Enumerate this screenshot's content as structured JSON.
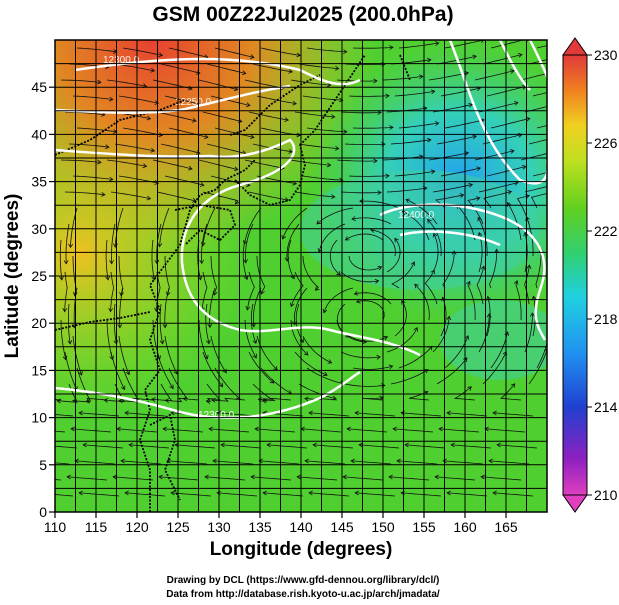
{
  "title": "GSM 00Z22Jul2025 (200.0hPa)",
  "x_axis": {
    "label": "Longitude (degrees)",
    "range": [
      110,
      170
    ],
    "ticks": [
      "110",
      "115",
      "120",
      "125",
      "130",
      "135",
      "140",
      "145",
      "150",
      "155",
      "160",
      "165"
    ]
  },
  "y_axis": {
    "label": "Latitude  (degrees)",
    "range": [
      0,
      50
    ],
    "ticks": [
      "0",
      "5",
      "10",
      "15",
      "20",
      "25",
      "30",
      "35",
      "40",
      "45"
    ]
  },
  "colorbar": {
    "ticks": [
      "230",
      "226",
      "222",
      "218",
      "214",
      "210"
    ],
    "colors": [
      "#e0306a",
      "#e040e0",
      "#8000c0",
      "#2030c0",
      "#2070e0",
      "#20b0f0",
      "#30d0c0",
      "#40d060",
      "#60d020",
      "#a0e020",
      "#e8e020",
      "#f8a020",
      "#f06020",
      "#e03030"
    ]
  },
  "contour_labels": [
    "12300.0",
    "12250.0",
    "12400.0",
    "12300.0",
    "12300.0"
  ],
  "credits": {
    "line1": "Drawing by DCL (https://www.gfd-dennou.org/library/dcl/)",
    "line2": "Data from http://database.rish.kyoto-u.ac.jp/arch/jmadata/"
  }
}
